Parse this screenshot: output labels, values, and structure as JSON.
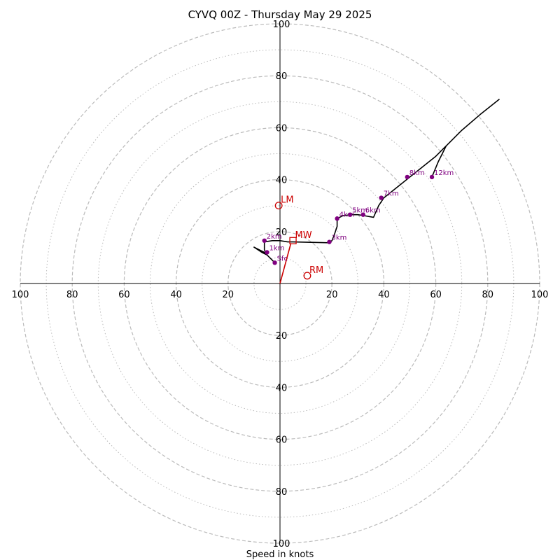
{
  "chart_data": {
    "type": "hodograph",
    "title": "CYVQ 00Z - Thursday May 29 2025",
    "xlabel": "Speed in knots",
    "xlim": [
      -100,
      100
    ],
    "ylim": [
      -100,
      100
    ],
    "major_rings": [
      20,
      40,
      60,
      80,
      100
    ],
    "minor_rings": [
      10,
      30,
      50,
      70,
      90
    ],
    "ring_tick_labels": [
      "20",
      "40",
      "60",
      "80",
      "100"
    ],
    "grid": true,
    "hodograph_trace": [
      [
        -2,
        8
      ],
      [
        -4,
        10
      ],
      [
        -5,
        11
      ],
      [
        -7,
        12
      ],
      [
        -10,
        14
      ],
      [
        -8,
        13
      ],
      [
        -6,
        12
      ],
      [
        -5,
        11
      ],
      [
        -6,
        13
      ],
      [
        -6,
        15
      ],
      [
        -6,
        16
      ],
      [
        -3,
        16.5
      ],
      [
        0,
        16.5
      ],
      [
        3,
        16
      ],
      [
        5,
        16
      ],
      [
        19,
        15.7
      ],
      [
        20,
        16.5
      ],
      [
        21,
        19
      ],
      [
        22,
        22
      ],
      [
        22,
        25
      ],
      [
        24,
        26
      ],
      [
        27,
        26.5
      ],
      [
        30,
        26.5
      ],
      [
        33,
        26
      ],
      [
        36,
        25.5
      ],
      [
        38,
        30
      ],
      [
        40,
        33
      ],
      [
        45,
        37
      ],
      [
        50,
        41
      ],
      [
        55,
        45
      ],
      [
        60,
        49
      ],
      [
        64,
        53
      ],
      [
        70,
        59
      ],
      [
        77,
        65
      ],
      [
        84.5,
        71
      ]
    ],
    "branch_trace": [
      [
        64,
        53
      ],
      [
        61,
        47
      ],
      [
        58.5,
        41
      ]
    ],
    "heights": [
      {
        "label": "Sfc",
        "u": -2,
        "v": 8
      },
      {
        "label": "1km",
        "u": -5,
        "v": 12
      },
      {
        "label": "2km",
        "u": -6,
        "v": 16.5
      },
      {
        "label": "3km",
        "u": 19,
        "v": 16
      },
      {
        "label": "4km",
        "u": 22,
        "v": 25
      },
      {
        "label": "5km",
        "u": 27,
        "v": 26.5
      },
      {
        "label": "6km",
        "u": 32,
        "v": 26.5
      },
      {
        "label": "7km",
        "u": 39,
        "v": 33
      },
      {
        "label": "8km",
        "u": 49,
        "v": 41
      },
      {
        "label": "12km",
        "u": 58.5,
        "v": 41
      }
    ],
    "motions": [
      {
        "label": "LM",
        "u": -0.5,
        "v": 30,
        "marker": "circle"
      },
      {
        "label": "RM",
        "u": 10.5,
        "v": 3,
        "marker": "circle"
      },
      {
        "label": "MW",
        "u": 5,
        "v": 16.5,
        "marker": "square"
      }
    ],
    "mean_wind_vector": {
      "u": 4.2,
      "v": 15.5
    },
    "colors": {
      "trace": "#000000",
      "height_marker": "#800080",
      "motion": "#cc0000",
      "ring": "#bbbbbb",
      "axis": "#000000"
    }
  }
}
